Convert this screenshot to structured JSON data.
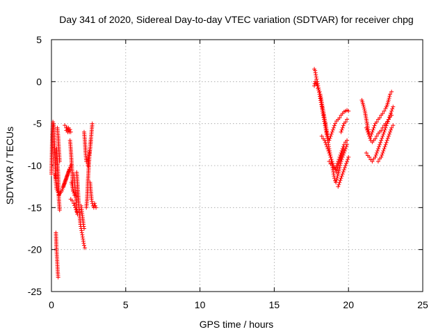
{
  "chart_data": {
    "type": "scatter",
    "title": "Day 341 of 2020, Sidereal Day-to-day VTEC variation (SDTVAR) for receiver chpg",
    "xlabel": "GPS time / hours",
    "ylabel": "SDTVAR / TECUs",
    "xlim": [
      0,
      25
    ],
    "ylim": [
      -25,
      5
    ],
    "xticks": [
      0,
      5,
      10,
      15,
      20,
      25
    ],
    "yticks": [
      -25,
      -20,
      -15,
      -10,
      -5,
      0,
      5
    ],
    "grid": true,
    "marker": "plus",
    "color": "#ff0000",
    "segments": [
      {
        "x": [
          0.0,
          0.05,
          0.1,
          0.15,
          0.2,
          0.25,
          0.3
        ],
        "y": [
          -11.0,
          -6.5,
          -4.8,
          -5.2,
          -7.5,
          -10.0,
          -11.5
        ]
      },
      {
        "x": [
          0.25,
          0.3,
          0.35,
          0.4,
          0.45,
          0.5
        ],
        "y": [
          -11.0,
          -12.0,
          -12.8,
          -13.0,
          -13.2,
          -13.5
        ]
      },
      {
        "x": [
          0.3,
          0.33,
          0.36,
          0.39,
          0.42,
          0.45
        ],
        "y": [
          -18.0,
          -19.5,
          -20.5,
          -21.5,
          -22.5,
          -23.3
        ]
      },
      {
        "x": [
          0.35,
          0.4,
          0.45,
          0.5,
          0.55
        ],
        "y": [
          -8.0,
          -9.5,
          -11.0,
          -14.0,
          -15.3
        ]
      },
      {
        "x": [
          0.4,
          0.45,
          0.5,
          0.55
        ],
        "y": [
          -5.5,
          -6.5,
          -8.0,
          -9.5
        ]
      },
      {
        "x": [
          0.5,
          0.7,
          0.9,
          1.1,
          1.3
        ],
        "y": [
          -13.5,
          -13.0,
          -12.0,
          -11.0,
          -10.0
        ]
      },
      {
        "x": [
          0.8,
          1.0,
          1.2
        ],
        "y": [
          -12.5,
          -11.5,
          -10.5
        ]
      },
      {
        "x": [
          0.9,
          1.0
        ],
        "y": [
          -5.2,
          -5.5
        ]
      },
      {
        "x": [
          1.0,
          1.05,
          1.1,
          1.15,
          1.2,
          1.25,
          1.3
        ],
        "y": [
          -5.8,
          -5.5,
          -6.0,
          -5.5,
          -6.0,
          -5.7,
          -6.0
        ]
      },
      {
        "x": [
          1.25,
          1.3,
          1.35,
          1.4,
          1.45
        ],
        "y": [
          -7.0,
          -8.0,
          -9.5,
          -11.0,
          -13.0
        ]
      },
      {
        "x": [
          1.3,
          1.4,
          1.5,
          1.6,
          1.7
        ],
        "y": [
          -14.0,
          -14.2,
          -14.5,
          -15.0,
          -15.5
        ]
      },
      {
        "x": [
          1.35,
          1.45,
          1.55
        ],
        "y": [
          -12.0,
          -12.8,
          -13.5
        ]
      },
      {
        "x": [
          1.5,
          1.55,
          1.6,
          1.65,
          1.7,
          1.75
        ],
        "y": [
          -11.0,
          -12.0,
          -13.0,
          -14.0,
          -15.0,
          -15.8
        ]
      },
      {
        "x": [
          1.7,
          1.75,
          1.8,
          1.85,
          1.9,
          1.95,
          2.0,
          2.05,
          2.1,
          2.15,
          2.2,
          2.25
        ],
        "y": [
          -10.8,
          -12.0,
          -13.5,
          -15.0,
          -16.0,
          -17.0,
          -17.5,
          -18.0,
          -18.5,
          -19.0,
          -19.5,
          -19.8
        ]
      },
      {
        "x": [
          2.0,
          2.05,
          2.1,
          2.15,
          2.2
        ],
        "y": [
          -14.8,
          -15.5,
          -16.2,
          -17.0,
          -17.5
        ]
      },
      {
        "x": [
          2.2,
          2.25,
          2.3,
          2.35
        ],
        "y": [
          -6.0,
          -7.0,
          -8.5,
          -9.5
        ]
      },
      {
        "x": [
          2.35,
          2.4,
          2.45,
          2.5,
          2.55,
          2.6,
          2.65
        ],
        "y": [
          -15.0,
          -14.0,
          -12.0,
          -10.5,
          -9.0,
          -8.0,
          -7.0
        ]
      },
      {
        "x": [
          2.45,
          2.5,
          2.55,
          2.6,
          2.65,
          2.7,
          2.75
        ],
        "y": [
          -10.0,
          -9.0,
          -8.5,
          -8.0,
          -7.0,
          -6.0,
          -5.0
        ]
      },
      {
        "x": [
          2.6,
          2.65,
          2.7,
          2.75,
          2.8,
          2.85,
          2.9,
          2.95,
          3.0
        ],
        "y": [
          -12.0,
          -13.0,
          -14.0,
          -14.5,
          -14.8,
          -15.0,
          -14.5,
          -14.8,
          -15.0
        ]
      },
      {
        "x": [
          17.7,
          17.75,
          17.8,
          17.85,
          17.9,
          17.95,
          18.0,
          18.05,
          18.1,
          18.15,
          18.2,
          18.25,
          18.3,
          18.35,
          18.4,
          18.45,
          18.5,
          18.55,
          18.6,
          18.65,
          18.7,
          18.75,
          18.8,
          18.85,
          18.9,
          18.95,
          19.0,
          19.05,
          19.1,
          19.15,
          19.2,
          19.3,
          19.4,
          19.5,
          19.6,
          19.7,
          19.8,
          19.9
        ],
        "y": [
          1.5,
          1.3,
          0.8,
          0.3,
          0.0,
          -0.5,
          -1.0,
          -1.5,
          -2.0,
          -2.5,
          -3.0,
          -3.5,
          -4.0,
          -4.5,
          -5.0,
          -5.5,
          -6.0,
          -6.5,
          -7.0,
          -7.5,
          -8.0,
          -8.5,
          -9.0,
          -9.5,
          -10.0,
          -10.5,
          -11.0,
          -11.5,
          -11.8,
          -12.0,
          -11.7,
          -11.0,
          -10.2,
          -9.5,
          -9.0,
          -8.5,
          -8.0,
          -7.5
        ]
      },
      {
        "x": [
          17.7,
          17.75,
          17.8,
          17.85,
          17.9,
          17.95,
          18.0,
          18.05,
          18.1,
          18.2,
          18.3,
          18.4,
          18.5,
          18.6,
          18.7,
          18.8,
          18.9,
          19.0,
          19.1,
          19.2,
          19.3,
          19.4,
          19.5,
          19.6,
          19.7,
          19.8,
          19.9,
          20.0
        ],
        "y": [
          -0.5,
          0.0,
          -0.2,
          -0.3,
          -0.5,
          -0.8,
          -1.0,
          -1.2,
          -1.5,
          -2.5,
          -3.5,
          -4.5,
          -5.5,
          -6.5,
          -7.0,
          -6.5,
          -6.0,
          -5.5,
          -5.0,
          -4.7,
          -4.5,
          -4.3,
          -4.0,
          -3.8,
          -3.6,
          -3.5,
          -3.4,
          -3.5
        ]
      },
      {
        "x": [
          18.2,
          18.3,
          18.4,
          18.5,
          18.6,
          18.7,
          18.8,
          18.9,
          19.0,
          19.1,
          19.2,
          19.3,
          19.4,
          19.5,
          19.6,
          19.7
        ],
        "y": [
          -6.5,
          -6.8,
          -7.0,
          -7.5,
          -8.0,
          -8.5,
          -9.0,
          -9.5,
          -10.0,
          -10.5,
          -10.8,
          -10.0,
          -9.5,
          -9.0,
          -8.5,
          -8.0
        ]
      },
      {
        "x": [
          18.7,
          18.8,
          18.9,
          19.0,
          19.1,
          19.2,
          19.3,
          19.4,
          19.5,
          19.6,
          19.7,
          19.8,
          19.9
        ],
        "y": [
          -9.5,
          -9.8,
          -10.0,
          -10.2,
          -10.5,
          -10.0,
          -9.5,
          -9.0,
          -8.5,
          -8.0,
          -7.5,
          -7.2,
          -7.0
        ]
      },
      {
        "x": [
          19.3,
          19.4,
          19.5,
          19.6,
          19.7,
          19.8,
          19.9,
          20.0
        ],
        "y": [
          -12.5,
          -12.0,
          -11.5,
          -11.0,
          -10.5,
          -10.0,
          -9.5,
          -9.0
        ]
      },
      {
        "x": [
          19.5,
          19.6,
          19.7,
          19.8,
          19.9
        ],
        "y": [
          -6.0,
          -5.5,
          -5.0,
          -4.8,
          -4.5
        ]
      },
      {
        "x": [
          20.9,
          21.0,
          21.1,
          21.2,
          21.3,
          21.4,
          21.5,
          21.6,
          21.7,
          21.8,
          21.9,
          22.0,
          22.1,
          22.2,
          22.3,
          22.4,
          22.5,
          22.6,
          22.7,
          22.8,
          22.9
        ],
        "y": [
          -2.2,
          -2.8,
          -3.5,
          -4.5,
          -5.5,
          -6.2,
          -6.5,
          -6.0,
          -5.5,
          -5.0,
          -4.8,
          -4.5,
          -4.3,
          -4.0,
          -3.8,
          -3.5,
          -3.2,
          -2.8,
          -2.2,
          -1.5,
          -1.2
        ]
      },
      {
        "x": [
          21.2,
          21.3,
          21.4,
          21.5,
          21.6,
          21.7,
          21.8,
          21.9,
          22.0,
          22.1,
          22.2,
          22.3,
          22.4,
          22.5,
          22.6,
          22.7,
          22.8,
          22.9
        ],
        "y": [
          -5.5,
          -6.0,
          -6.5,
          -7.0,
          -7.2,
          -7.0,
          -6.8,
          -6.5,
          -6.2,
          -6.0,
          -5.8,
          -5.5,
          -5.2,
          -5.0,
          -4.8,
          -4.5,
          -4.2,
          -4.0
        ]
      },
      {
        "x": [
          21.2,
          21.3,
          21.4,
          21.5,
          21.6,
          21.7,
          21.8,
          21.9,
          22.0,
          22.1,
          22.2,
          22.3,
          22.4,
          22.5,
          22.6,
          22.7,
          22.8,
          22.9,
          23.0
        ],
        "y": [
          -8.5,
          -8.8,
          -9.0,
          -9.3,
          -9.5,
          -9.2,
          -9.0,
          -8.5,
          -8.0,
          -7.5,
          -7.0,
          -6.5,
          -6.0,
          -5.5,
          -5.0,
          -4.5,
          -4.0,
          -3.5,
          -3.0
        ]
      },
      {
        "x": [
          22.0,
          22.1,
          22.2,
          22.3,
          22.4,
          22.5,
          22.6,
          22.7,
          22.8,
          22.9,
          23.0
        ],
        "y": [
          -9.5,
          -9.2,
          -9.0,
          -8.5,
          -8.0,
          -7.5,
          -7.0,
          -6.5,
          -6.0,
          -5.5,
          -5.2
        ]
      }
    ]
  }
}
